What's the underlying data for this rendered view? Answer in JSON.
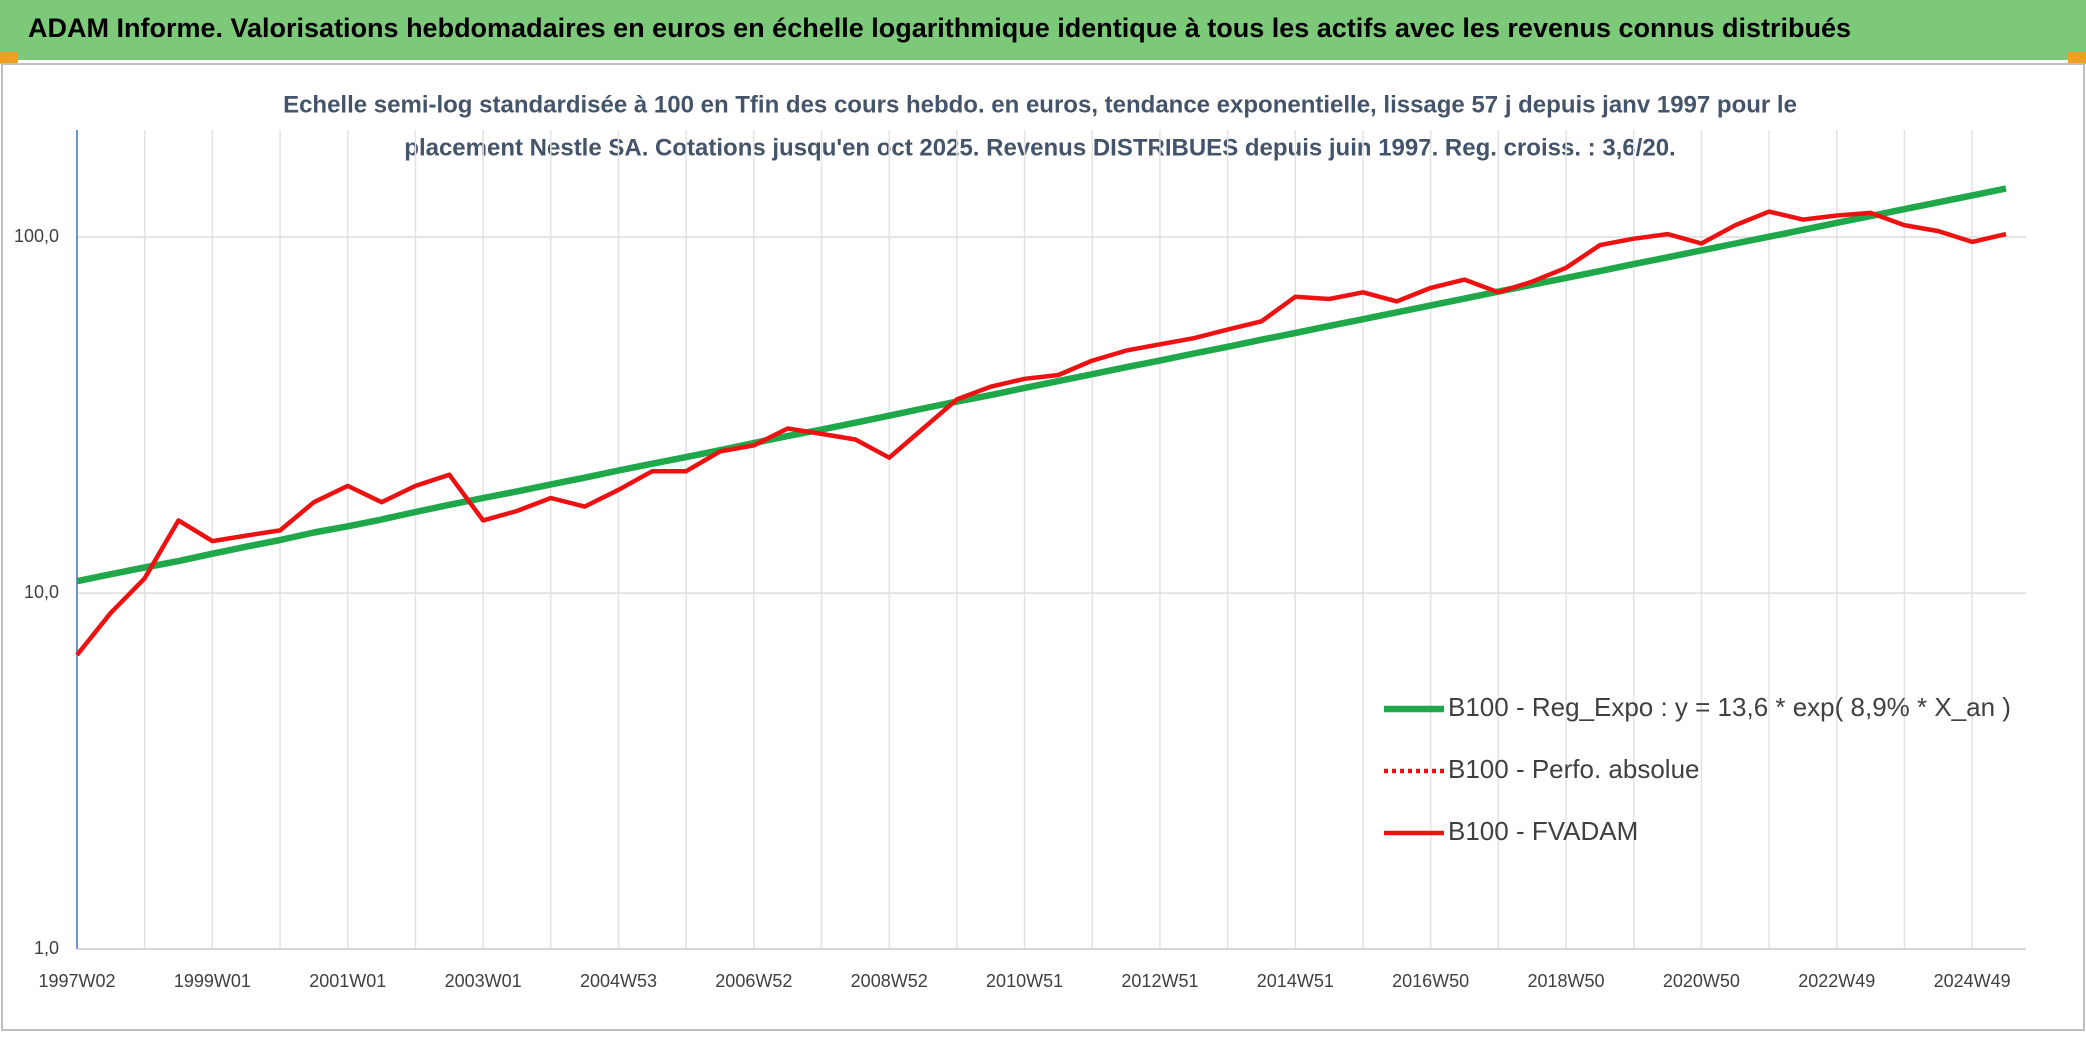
{
  "chart_data": {
    "type": "line",
    "title": "ADAM Informe. Valorisations hebdomadaires en euros en échelle logarithmique identique à tous les actifs avec les revenus connus distribués",
    "subtitle": [
      "Echelle semi-log standardisée à 100 en Tfin des cours hebdo. en euros, tendance exponentielle, lissage 57 j depuis janv 1997 pour le",
      "placement Nestle SA. Cotations jusqu'en oct 2025. Revenus DISTRIBUES depuis juin 1997. Reg. croiss. : 3,6/20."
    ],
    "categories": [
      "1997W02",
      null,
      null,
      null,
      "1999W01",
      null,
      null,
      null,
      "2001W01",
      null,
      null,
      null,
      "2003W01",
      null,
      null,
      null,
      "2004W53",
      null,
      null,
      null,
      "2006W52",
      null,
      null,
      null,
      "2008W52",
      null,
      null,
      null,
      "2010W51",
      null,
      null,
      null,
      "2012W51",
      null,
      null,
      null,
      "2014W51",
      null,
      null,
      null,
      "2016W50",
      null,
      null,
      null,
      "2018W50",
      null,
      null,
      null,
      "2020W50",
      null,
      null,
      null,
      "2022W49",
      null,
      null,
      null,
      "2024W49",
      null
    ],
    "series": [
      {
        "name": "B100 - Reg_Expo : y = 13,6 * exp( 8,9% *  X_an )",
        "color": "#1fa84a",
        "style": "solid",
        "values": [
          10.8,
          11.3,
          11.8,
          12.3,
          12.9,
          13.5,
          14.1,
          14.8,
          15.4,
          16.1,
          16.9,
          17.7,
          18.5,
          19.3,
          20.2,
          21.1,
          22.1,
          23.1,
          24.1,
          25.2,
          26.4,
          27.6,
          28.8,
          30.1,
          31.5,
          33.0,
          34.5,
          36.0,
          37.7,
          39.4,
          41.2,
          43.1,
          45.0,
          47.1,
          49.2,
          51.5,
          53.8,
          56.3,
          58.8,
          61.5,
          64.3,
          67.2,
          70.3,
          73.5,
          76.8,
          80.3,
          84.0,
          87.8,
          91.8,
          96.0,
          100.3,
          104.9,
          109.7,
          114.6,
          119.9,
          125.3,
          131.0,
          137.0
        ]
      },
      {
        "name": "B100 - Perfo. absolue",
        "color": "#e81010",
        "style": "dotted"
      },
      {
        "name": "B100 - FVADAM",
        "color": "#ee1111",
        "style": "solid",
        "values": [
          6.7,
          8.8,
          11,
          16,
          14,
          14.5,
          15,
          18,
          20,
          18,
          20,
          21.5,
          16,
          17,
          18.5,
          17.5,
          19.5,
          22,
          22,
          25,
          26,
          29,
          28,
          27,
          24,
          29,
          35,
          38,
          40,
          41,
          45,
          48,
          50,
          52,
          55,
          58,
          68,
          67,
          70,
          66,
          72,
          76,
          70,
          75,
          82,
          95,
          99,
          102,
          96,
          108,
          118,
          112,
          115,
          117,
          108,
          104,
          97,
          102
        ]
      }
    ],
    "log_scale": true,
    "ylim": [
      1,
      200
    ],
    "yticks": [
      {
        "value": 1,
        "label": "1,0"
      },
      {
        "value": 10,
        "label": "10,0"
      },
      {
        "value": 100,
        "label": "100,0"
      }
    ],
    "grid": true,
    "legend_position": "lower right"
  }
}
